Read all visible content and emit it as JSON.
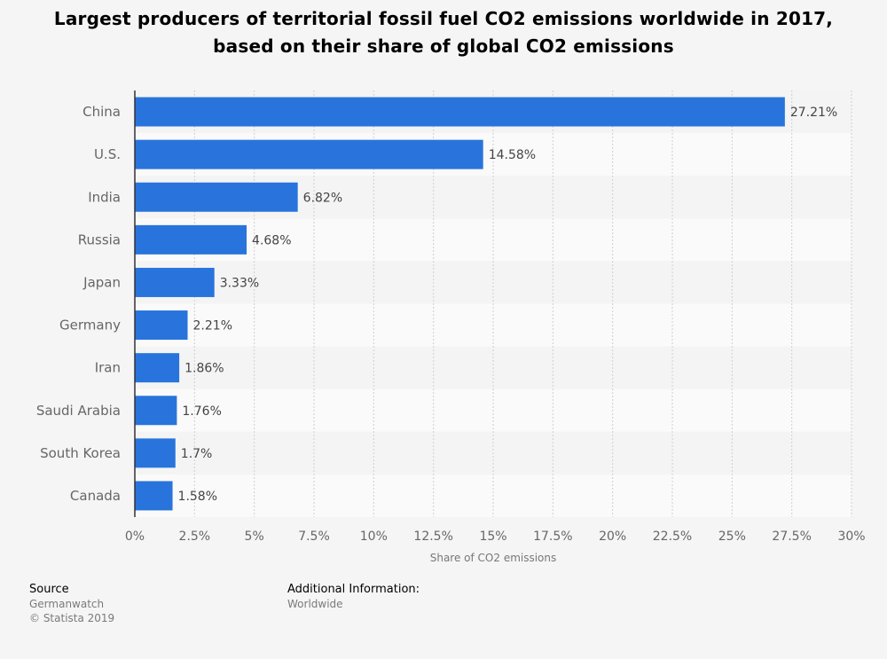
{
  "chart_data": {
    "type": "bar",
    "orientation": "horizontal",
    "title": "Largest producers of territorial fossil fuel CO2 emissions worldwide in 2017, based on their share of global CO2 emissions",
    "categories": [
      "China",
      "U.S.",
      "India",
      "Russia",
      "Japan",
      "Germany",
      "Iran",
      "Saudi Arabia",
      "South Korea",
      "Canada"
    ],
    "values": [
      27.21,
      14.58,
      6.82,
      4.68,
      3.33,
      2.21,
      1.86,
      1.76,
      1.7,
      1.58
    ],
    "value_labels": [
      "27.21%",
      "14.58%",
      "6.82%",
      "4.68%",
      "3.33%",
      "2.21%",
      "1.86%",
      "1.76%",
      "1.7%",
      "1.58%"
    ],
    "xlabel": "Share of CO2 emissions",
    "ylabel": "",
    "xlim": [
      0,
      30
    ],
    "x_ticks": [
      0,
      2.5,
      5,
      7.5,
      10,
      12.5,
      15,
      17.5,
      20,
      22.5,
      25,
      27.5,
      30
    ],
    "x_tick_labels": [
      "0%",
      "2.5%",
      "5%",
      "7.5%",
      "10%",
      "12.5%",
      "15%",
      "17.5%",
      "20%",
      "22.5%",
      "25%",
      "27.5%",
      "30%"
    ],
    "bar_color": "#2874dc",
    "grid": true,
    "legend": "none"
  },
  "footer": {
    "source_heading": "Source",
    "source_lines": [
      "Germanwatch",
      "© Statista 2019"
    ],
    "additional_heading": "Additional Information:",
    "additional_lines": [
      "Worldwide"
    ]
  }
}
